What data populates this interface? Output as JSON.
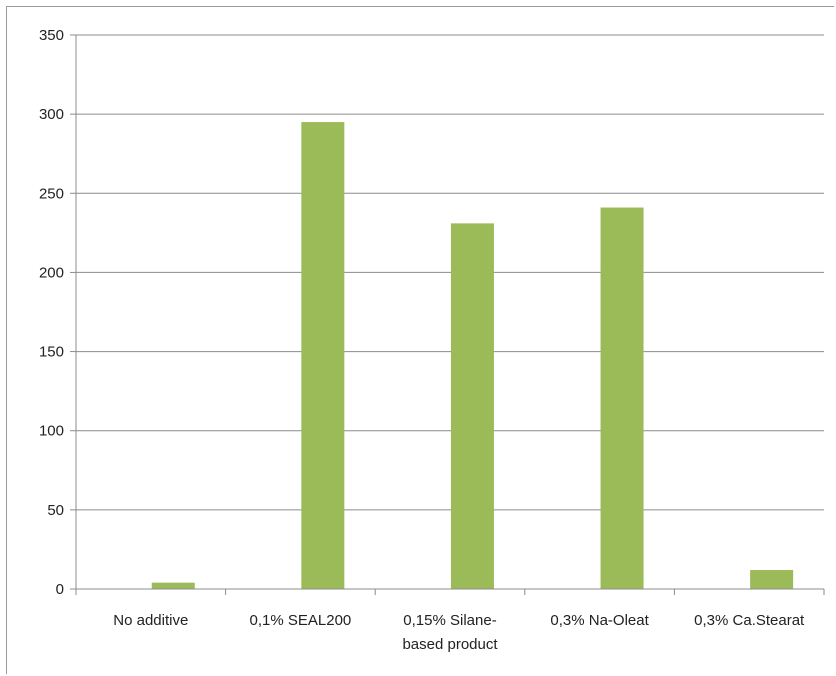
{
  "chart_data": {
    "type": "bar",
    "categories": [
      [
        "No additive"
      ],
      [
        "0,1% SEAL200"
      ],
      [
        "0,15% Silane-",
        "based product"
      ],
      [
        "0,3% Na-Oleat"
      ],
      [
        "0,3% Ca.Stearat"
      ]
    ],
    "values": [
      4,
      295,
      231,
      241,
      12
    ],
    "ylim": [
      0,
      350
    ],
    "yticks": [
      0,
      50,
      100,
      150,
      200,
      250,
      300,
      350
    ],
    "grid": true,
    "legend": "none",
    "bar_color": "#9bbb59",
    "grid_color": "#8c8c8c"
  }
}
